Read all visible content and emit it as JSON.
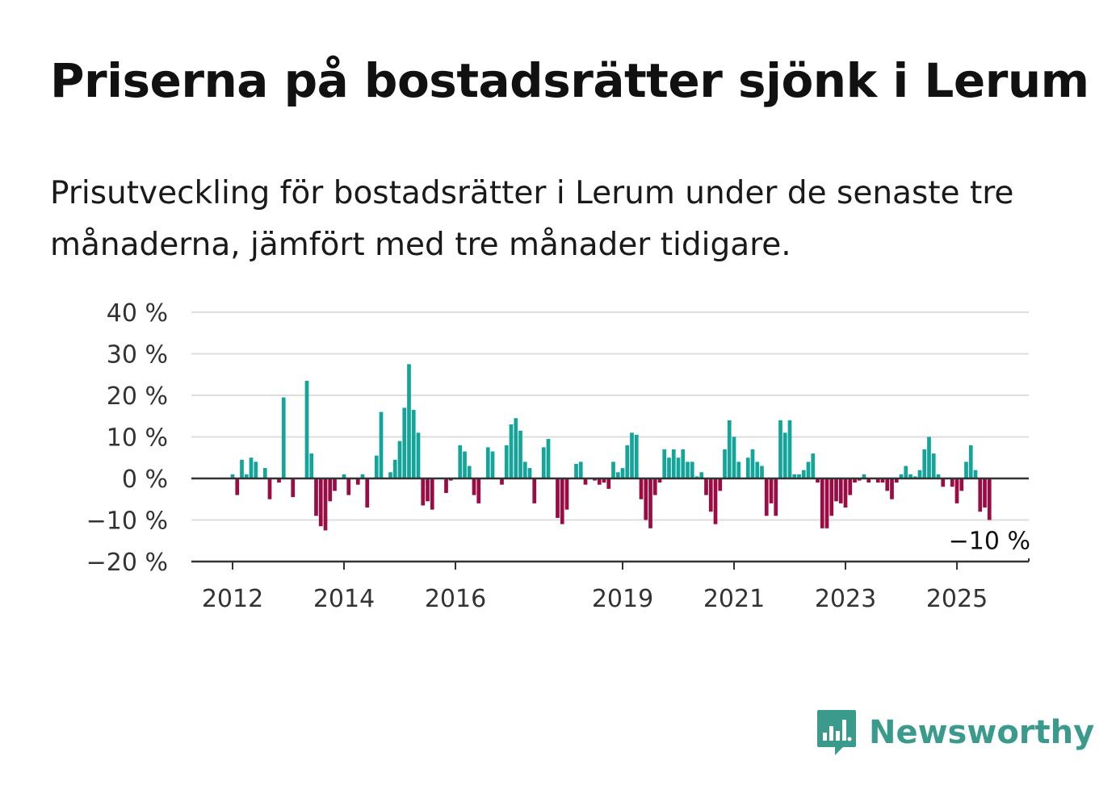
{
  "title": "Priserna på bostadsrätter sjönk i Lerum",
  "subtitle": "Prisutveckling för bostadsrätter i Lerum under de senaste tre månaderna, jämfört med tre månader tidigare.",
  "brand": {
    "name": "Newsworthy",
    "color": "#3a9b8c",
    "icon": "chart-bubble-icon"
  },
  "colors": {
    "positive": "#13a59a",
    "negative": "#9b0c45",
    "grid": "#dddddd",
    "axis": "#333333"
  },
  "chart_data": {
    "type": "bar",
    "x_start": "2012-01",
    "x_unit": "month",
    "x_ticks": [
      {
        "label": "2012",
        "month_index": 0
      },
      {
        "label": "2014",
        "month_index": 24
      },
      {
        "label": "2016",
        "month_index": 48
      },
      {
        "label": "2019",
        "month_index": 84
      },
      {
        "label": "2021",
        "month_index": 108
      },
      {
        "label": "2023",
        "month_index": 132
      },
      {
        "label": "2025",
        "month_index": 156
      }
    ],
    "y_ticks": [
      "40 %",
      "30 %",
      "20 %",
      "10 %",
      "0 %",
      "−10 %",
      "−20 %"
    ],
    "ylim": [
      -20,
      40
    ],
    "grid": true,
    "last_value_label": "−10 %",
    "values": [
      1,
      -4,
      4.5,
      1,
      5,
      4,
      0,
      2.5,
      -5,
      0,
      -1,
      19.5,
      0,
      -4.5,
      0,
      0,
      23.5,
      6,
      -9,
      -11.5,
      -12.5,
      -5.5,
      -3,
      0,
      1,
      -4,
      0,
      -1.5,
      1,
      -7,
      0,
      5.5,
      16,
      0,
      1.5,
      4.5,
      9,
      17,
      27.5,
      16.5,
      11,
      -6.5,
      -5.5,
      -7.5,
      0,
      0,
      -3.5,
      -0.5,
      0,
      8,
      6.5,
      3,
      -4,
      -6,
      0,
      7.5,
      6.5,
      0,
      -1.5,
      8,
      13,
      14.5,
      11.5,
      4,
      2.5,
      -6,
      0,
      7.5,
      9.5,
      0,
      -9.5,
      -11,
      -7.5,
      0,
      3.5,
      4,
      -1.5,
      0,
      -0.5,
      -1.5,
      -1,
      -2.5,
      4,
      1.5,
      2.5,
      8,
      11,
      10.5,
      -5,
      -10,
      -12,
      -4,
      -1,
      7,
      5,
      7,
      5,
      7,
      4,
      4,
      0.5,
      1.5,
      -4,
      -8,
      -11,
      -3,
      7,
      14,
      10,
      4,
      0,
      5,
      7,
      4,
      3,
      -9,
      -6,
      -9,
      14,
      11,
      14,
      1,
      1,
      2,
      4,
      6,
      -1,
      -12,
      -12,
      -9,
      -5.5,
      -6,
      -7,
      -4,
      -1,
      -0.5,
      1,
      -1,
      0,
      -1,
      -1,
      -3,
      -5,
      -1,
      1,
      3,
      1,
      0.5,
      2,
      7,
      10,
      6,
      1,
      -2,
      0,
      -2,
      -6,
      -3,
      4,
      8,
      2,
      -8,
      -7,
      -10
    ]
  }
}
